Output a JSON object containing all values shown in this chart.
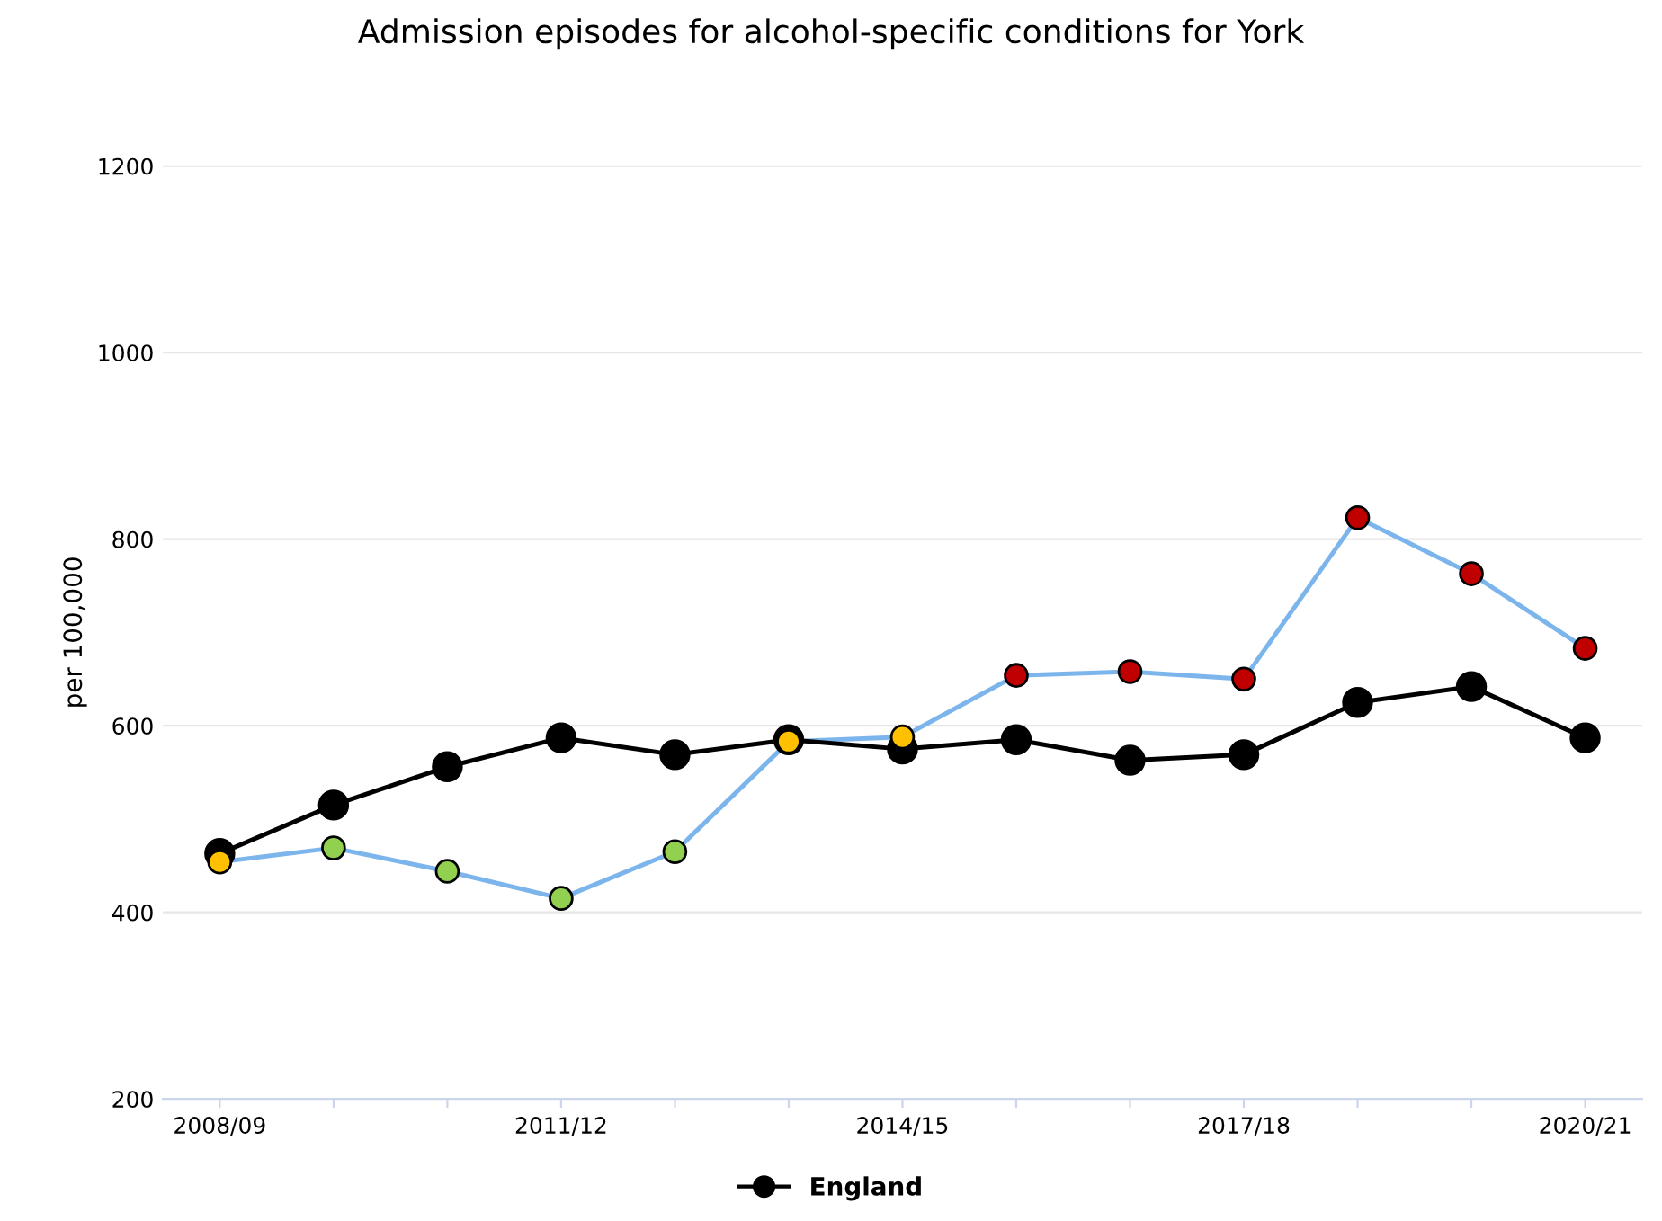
{
  "chart_data": {
    "type": "line",
    "title": "Admission episodes for alcohol-specific conditions for York",
    "ylabel": "per 100,000",
    "categories": [
      "2008/09",
      null,
      null,
      "2011/12",
      null,
      null,
      "2014/15",
      null,
      null,
      "2017/18",
      null,
      null,
      "2020/21"
    ],
    "series": [
      {
        "color": "#7cb5ec",
        "colors": [
          "#ffc000",
          "#92d050",
          "#92d050",
          "#92d050",
          "#92d050",
          "#ffc000",
          "#ffc000",
          "#c00000",
          "#c00000",
          "#c00000",
          "#c00000",
          "#c00000",
          "#c00000"
        ],
        "values": [
          454,
          469,
          444,
          415,
          465,
          583,
          588,
          654,
          658,
          650,
          823,
          763,
          683
        ]
      },
      {
        "name": "England",
        "color": "#000000",
        "values": [
          463,
          515,
          556,
          587,
          569,
          585,
          575,
          585,
          563,
          569,
          625,
          642,
          587
        ]
      }
    ],
    "ylim": [
      200,
      1200
    ],
    "yticks": [
      200,
      400,
      600,
      800,
      1000,
      1200
    ],
    "grid": "y",
    "legend": "bottom",
    "marker": "circle",
    "line_style": "solid"
  }
}
